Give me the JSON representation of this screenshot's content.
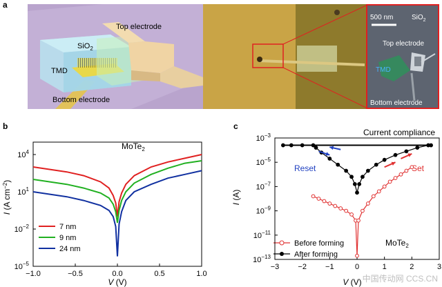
{
  "panel_labels": {
    "a": "a",
    "b": "b",
    "c": "c"
  },
  "panel_a": {
    "schematic": {
      "top_electrode": "Top electrode",
      "sio2_main": "SiO",
      "sio2_sub": "2",
      "tmd": "TMD",
      "bottom_electrode": "Bottom electrode"
    },
    "sem": {
      "scale_bar": "500 nm",
      "sio2_main": "SiO",
      "sio2_sub": "2",
      "top_electrode": "Top electrode",
      "tmd": "TMD",
      "bottom_electrode": "Bottom electrode"
    },
    "colors": {
      "background": "#b9a4cd",
      "gold": "#c9a446",
      "optical": "#b08a30",
      "sem_border": "#e02020"
    }
  },
  "chart_data": [
    {
      "id": "b",
      "type": "line",
      "title": "MoTe2",
      "title_main": "MoTe",
      "title_sub": "2",
      "xlabel_sym": "V",
      "xlabel_unit": " (V)",
      "ylabel_sym": "I",
      "ylabel_unit_pre": " (A cm",
      "ylabel_unit_sup": "−2",
      "ylabel_unit_post": ")",
      "xlim": [
        -1.0,
        1.0
      ],
      "ylim_log10": [
        -5,
        5
      ],
      "xticks": [
        -1.0,
        -0.5,
        0.0,
        0.5,
        1.0
      ],
      "xtick_labels": [
        "−1.0",
        "−0.5",
        "0.0",
        "0.5",
        "1.0"
      ],
      "yticks_log10": [
        -5,
        -2,
        1,
        4
      ],
      "ytick_mant": [
        "10",
        "10",
        "10",
        "10"
      ],
      "ytick_exp": [
        "−5",
        "−2",
        "1",
        "4"
      ],
      "series": [
        {
          "name": "7 nm",
          "color": "#e02020",
          "v0": 0.0,
          "a": 0.0,
          "x": [
            -1,
            -0.8,
            -0.6,
            -0.4,
            -0.2,
            -0.1,
            -0.05,
            -0.02,
            0,
            0.02,
            0.05,
            0.1,
            0.2,
            0.4,
            0.6,
            0.8,
            1.0
          ],
          "y_log10": [
            3.0,
            2.8,
            2.6,
            2.3,
            1.8,
            1.3,
            0.7,
            0.1,
            -1.0,
            0.2,
            0.9,
            1.6,
            2.3,
            3.0,
            3.4,
            3.7,
            4.0
          ]
        },
        {
          "name": "9 nm",
          "color": "#20b020",
          "x": [
            -1,
            -0.8,
            -0.6,
            -0.4,
            -0.2,
            -0.1,
            -0.05,
            -0.02,
            0,
            0.02,
            0.05,
            0.1,
            0.2,
            0.4,
            0.6,
            0.8,
            1.0
          ],
          "y_log10": [
            2.0,
            1.8,
            1.6,
            1.3,
            0.9,
            0.5,
            0.0,
            -0.6,
            -1.5,
            -0.5,
            0.3,
            1.0,
            1.7,
            2.4,
            2.9,
            3.3,
            3.5
          ]
        },
        {
          "name": "24 nm",
          "color": "#1030a0",
          "x": [
            -1,
            -0.8,
            -0.6,
            -0.4,
            -0.2,
            -0.1,
            -0.05,
            -0.02,
            0,
            0.02,
            0.05,
            0.1,
            0.2,
            0.4,
            0.6,
            0.8,
            1.0
          ],
          "y_log10": [
            1.0,
            0.8,
            0.6,
            0.3,
            -0.1,
            -0.5,
            -1.0,
            -1.8,
            -4.2,
            -1.6,
            -0.6,
            0.3,
            1.0,
            1.6,
            2.1,
            2.4,
            2.7
          ]
        }
      ],
      "legend": [
        "7 nm",
        "9 nm",
        "24 nm"
      ]
    },
    {
      "id": "c",
      "type": "line",
      "title": "MoTe2",
      "title_main": "MoTe",
      "title_sub": "2",
      "xlabel_sym": "V",
      "xlabel_unit": " (V)",
      "ylabel_sym": "I",
      "ylabel_unit": " (A)",
      "xlim": [
        -3,
        3
      ],
      "ylim_log10": [
        -13,
        -3
      ],
      "xticks": [
        -3,
        -2,
        -1,
        0,
        1,
        2,
        3
      ],
      "xtick_labels": [
        "−3",
        "−2",
        "−1",
        "0",
        "1",
        "2",
        "3"
      ],
      "yticks_log10": [
        -13,
        -11,
        -9,
        -7,
        -5,
        -3
      ],
      "ytick_mant": [
        "10",
        "10",
        "10",
        "10",
        "10",
        "10"
      ],
      "ytick_exp": [
        "−13",
        "−11",
        "−9",
        "−7",
        "−5",
        "−3"
      ],
      "annotations": {
        "compliance": "Current compliance",
        "reset": "Reset",
        "set": "Set"
      },
      "series": [
        {
          "name": "Before forming",
          "color": "#e03030",
          "style": "open-circle",
          "x": [
            -1.6,
            -1.4,
            -1.2,
            -1.0,
            -0.8,
            -0.6,
            -0.4,
            -0.2,
            -0.05,
            0,
            0.05,
            0.2,
            0.4,
            0.6,
            0.8,
            1.0,
            1.2,
            1.4,
            1.6,
            1.8,
            2.0
          ],
          "y_log10": [
            -7.8,
            -8.0,
            -8.2,
            -8.4,
            -8.6,
            -8.8,
            -9.0,
            -9.3,
            -9.8,
            -12.7,
            -9.8,
            -9.0,
            -8.4,
            -7.8,
            -7.4,
            -7.0,
            -6.6,
            -6.3,
            -6.0,
            -5.7,
            -5.4
          ]
        },
        {
          "name": "After forming",
          "color": "#000000",
          "style": "filled-circle",
          "x": [
            -2.7,
            -2.4,
            -2.0,
            -1.6,
            -1.5,
            -1.3,
            -1.0,
            -0.7,
            -0.4,
            -0.2,
            -0.08,
            0,
            0.08,
            0.2,
            0.4,
            0.7,
            1.0,
            1.4,
            1.8,
            2.2,
            2.6,
            2.7
          ],
          "y_log10": [
            -3.6,
            -3.6,
            -3.6,
            -3.6,
            -3.8,
            -4.2,
            -4.7,
            -5.2,
            -5.7,
            -6.2,
            -6.8,
            -7.5,
            -6.8,
            -6.2,
            -5.7,
            -5.2,
            -4.8,
            -4.4,
            -4.1,
            -3.8,
            -3.6,
            -3.6
          ]
        }
      ],
      "legend": [
        "Before forming",
        "After forming"
      ]
    }
  ],
  "watermark": "中国传动网 CCS.CN"
}
